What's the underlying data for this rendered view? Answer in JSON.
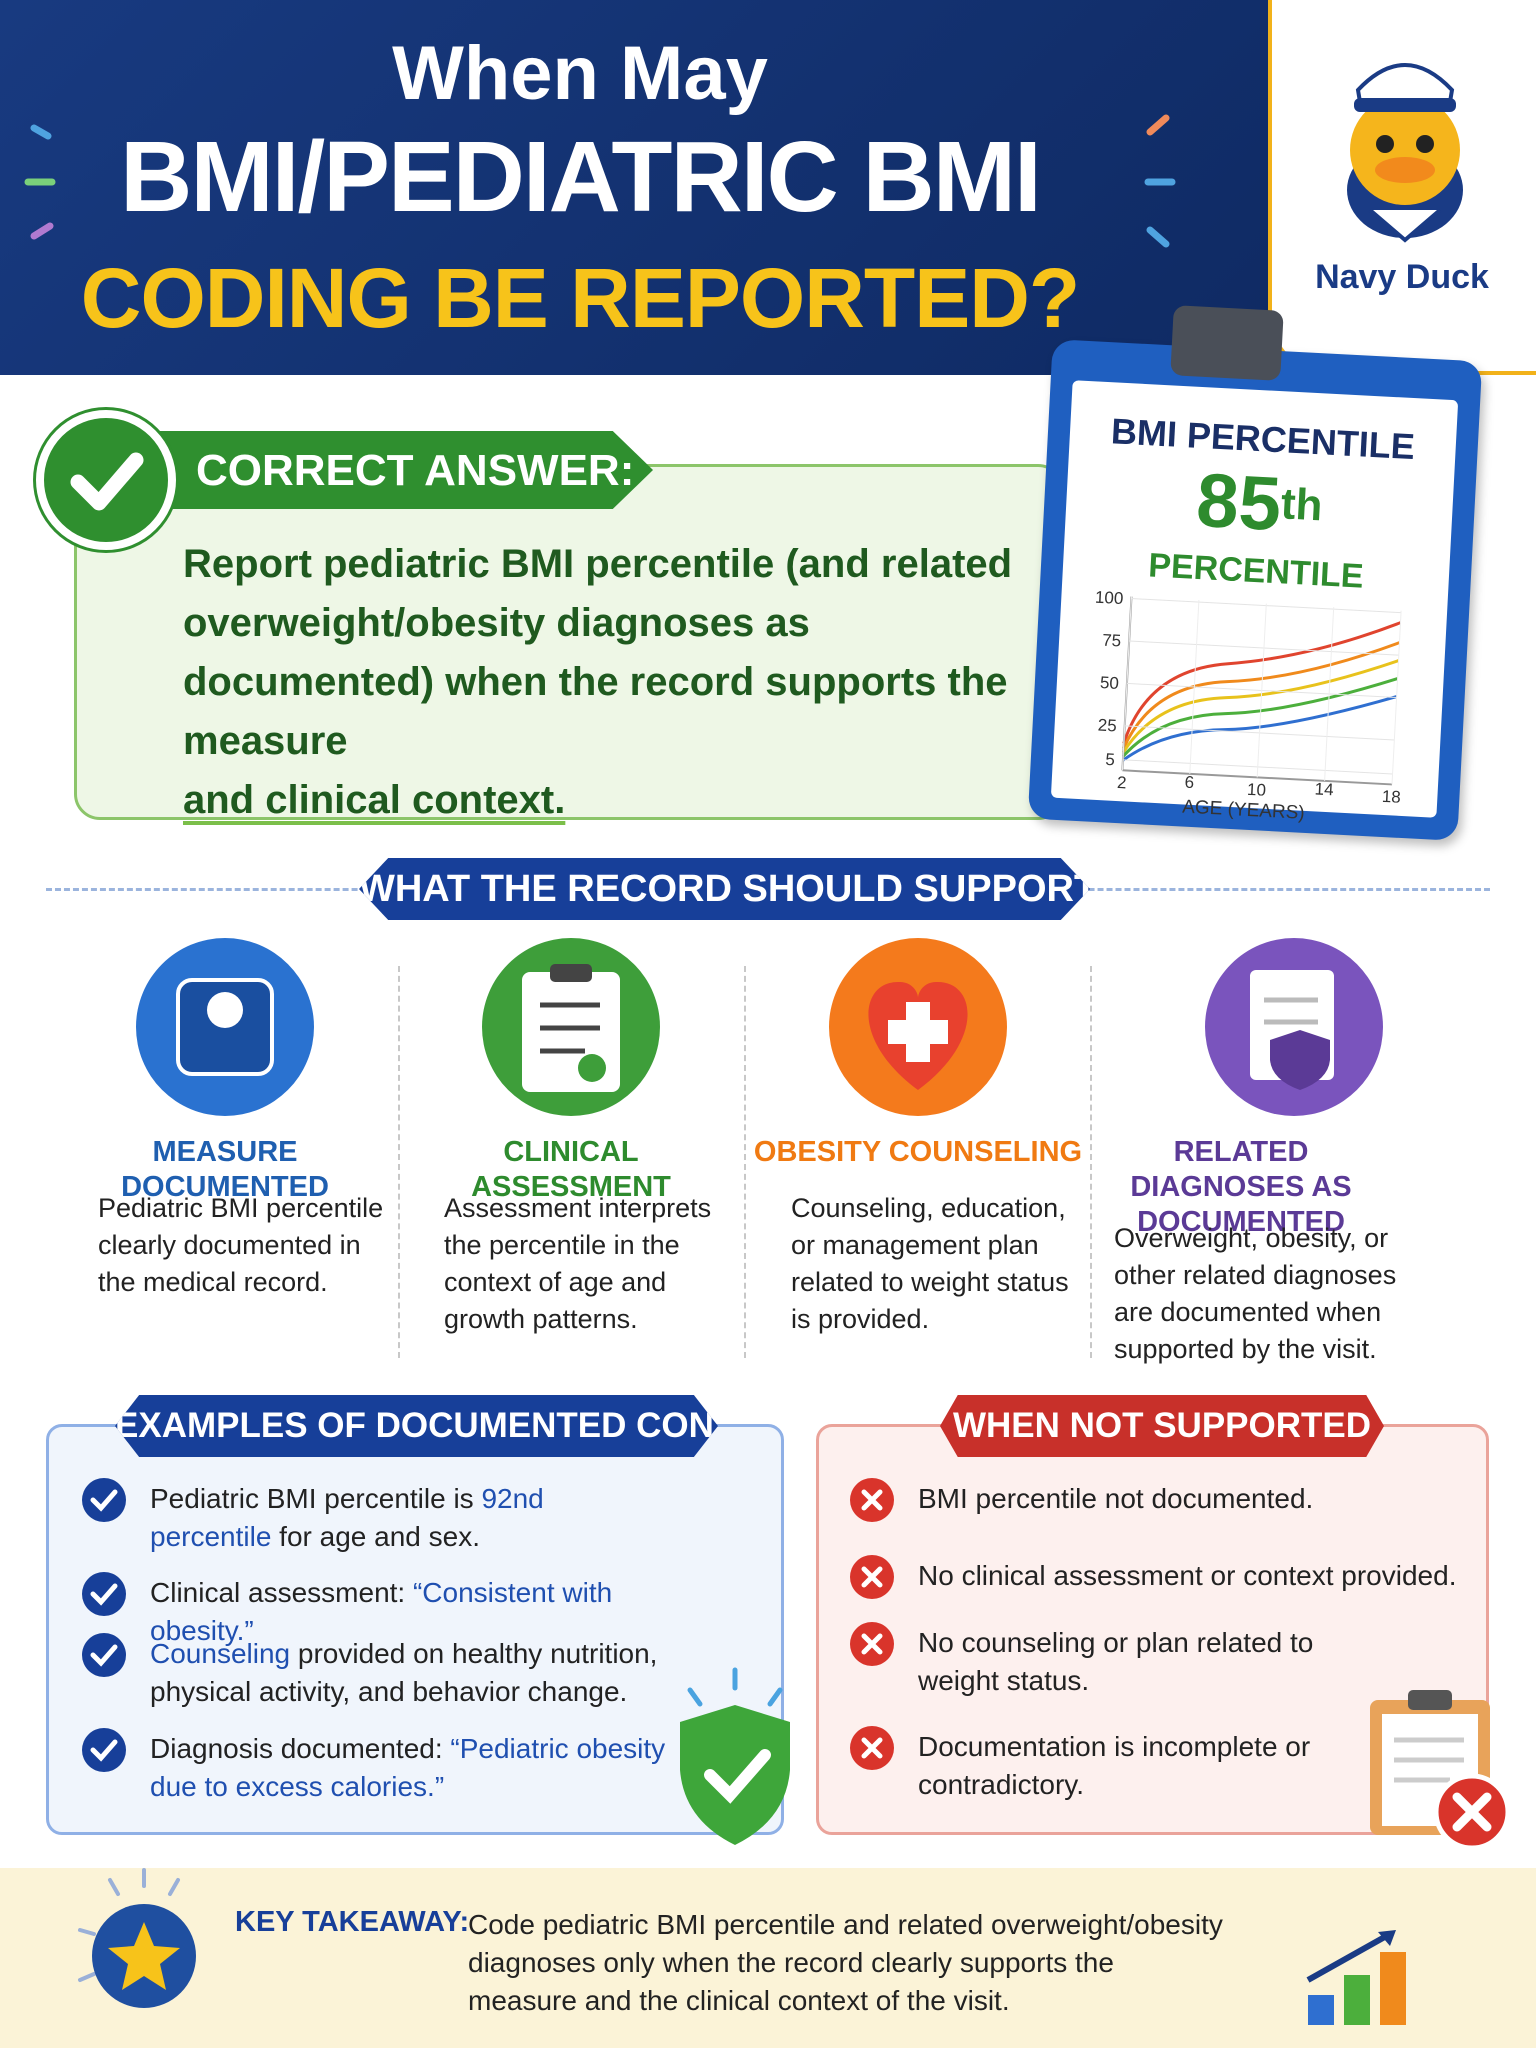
{
  "header": {
    "title_line1": "When May",
    "title_line2": "BMI/PEDIATRIC BMI",
    "title_line3": "CODING BE REPORTED?",
    "logo_name": "Navy Duck"
  },
  "answer": {
    "label": "CORRECT ANSWER:",
    "text": "Report pediatric BMI percentile (and related overweight/obesity diagnoses as documented) when the record supports the measure",
    "underlined": "and clinical context."
  },
  "clipboard": {
    "title": "BMI PERCENTILE",
    "value": 85,
    "suffix": "th",
    "unit": "PERCENTILE",
    "yticks": [
      100,
      75,
      50,
      25,
      5
    ],
    "xticks": [
      2,
      6,
      10,
      14,
      18
    ],
    "xlabel": "AGE (YEARS)"
  },
  "support": {
    "heading": "WHAT THE RECORD SHOULD SUPPORT",
    "columns": [
      {
        "title": "MEASURE DOCUMENTED",
        "text": "Pediatric BMI percentile clearly documented in the medical record.",
        "color": "#1f5fb0"
      },
      {
        "title": "CLINICAL ASSESSMENT",
        "text": "Assessment interprets the percentile in the context of age and growth patterns.",
        "color": "#2e8b2e"
      },
      {
        "title": "OBESITY COUNSELING",
        "text": "Counseling, education, or management plan related to weight status is provided.",
        "color": "#f07a12"
      },
      {
        "title": "RELATED DIAGNOSES AS DOCUMENTED",
        "text": "Overweight, obesity, or other related diagnoses are documented when supported by the visit.",
        "color": "#5b3a96"
      }
    ]
  },
  "examples": {
    "heading": "EXAMPLES OF DOCUMENTED CONTEXT",
    "items": [
      [
        {
          "t": "Pediatric BMI percentile is "
        },
        {
          "b": "92nd percentile"
        },
        {
          "t": " for age and sex."
        }
      ],
      [
        {
          "t": "Clinical assessment: "
        },
        {
          "b": "“Consistent with obesity.”"
        }
      ],
      [
        {
          "b": "Counseling"
        },
        {
          "t": " provided on healthy nutrition, physical activity, and behavior change."
        }
      ],
      [
        {
          "t": "Diagnosis documented: "
        },
        {
          "b": "“Pediatric obesity due to excess calories.”"
        }
      ]
    ]
  },
  "not_supported": {
    "heading": "WHEN NOT SUPPORTED",
    "items": [
      "BMI percentile not documented.",
      "No clinical assessment or context provided.",
      "No counseling or plan related to weight status.",
      "Documentation is incomplete or contradictory."
    ]
  },
  "takeaway": {
    "label": "KEY TAKEAWAY:",
    "text": "Code pediatric BMI percentile and related overweight/obesity diagnoses only when the record clearly supports the measure and the clinical context of the visit."
  }
}
